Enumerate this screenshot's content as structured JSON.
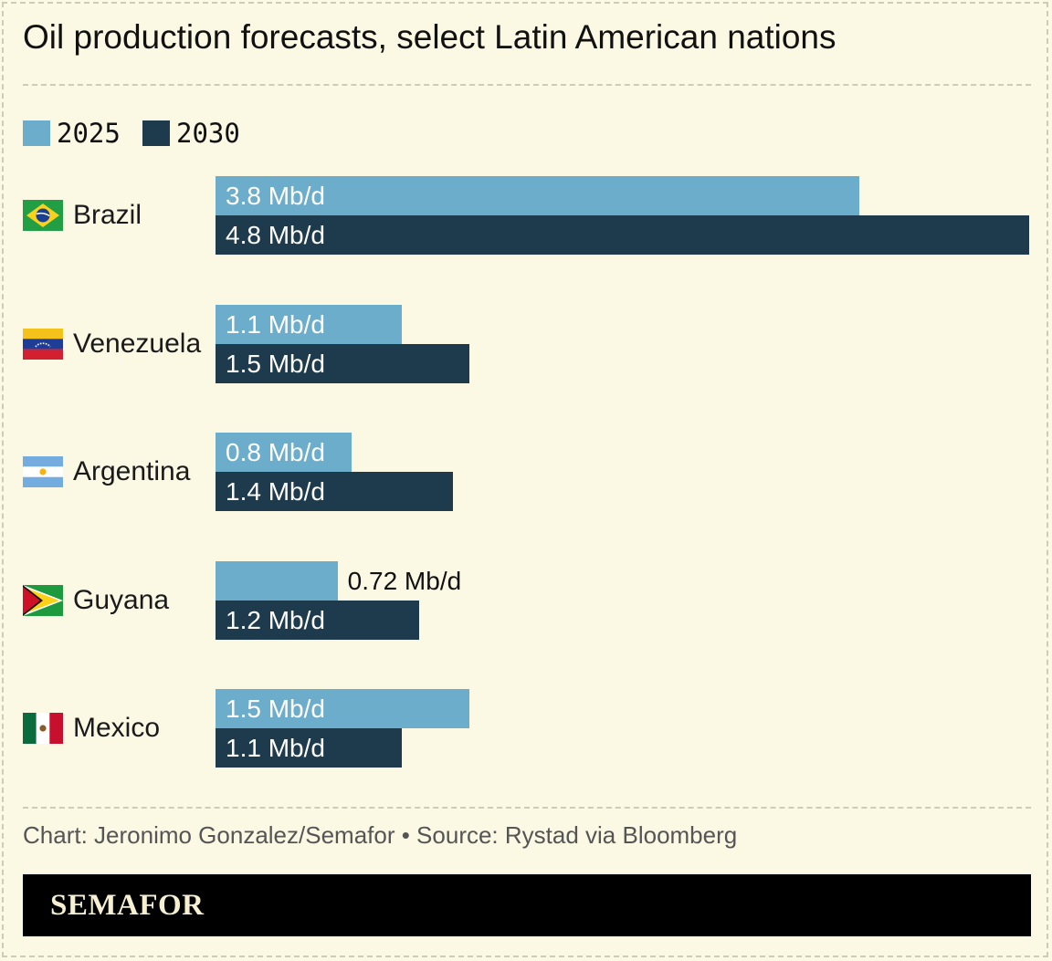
{
  "title": "Oil production forecasts, select Latin American nations",
  "legend": [
    {
      "label": "2025",
      "color": "#6badcb"
    },
    {
      "label": "2030",
      "color": "#1e3b4d"
    }
  ],
  "chart_data": {
    "type": "bar",
    "orientation": "horizontal",
    "title": "Oil production forecasts, select Latin American nations",
    "categories": [
      "Brazil",
      "Venezuela",
      "Argentina",
      "Guyana",
      "Mexico"
    ],
    "series": [
      {
        "name": "2025",
        "color": "#6badcb",
        "values": [
          3.8,
          1.1,
          0.8,
          0.72,
          1.5
        ],
        "labels": [
          "3.8 Mb/d",
          "1.1 Mb/d",
          "0.8 Mb/d",
          "0.72 Mb/d",
          "1.5 Mb/d"
        ]
      },
      {
        "name": "2030",
        "color": "#1e3b4d",
        "values": [
          4.8,
          1.5,
          1.4,
          1.2,
          1.1
        ],
        "labels": [
          "4.8 Mb/d",
          "1.5 Mb/d",
          "1.4 Mb/d",
          "1.2 Mb/d",
          "1.1 Mb/d"
        ]
      }
    ],
    "xlim": [
      0,
      4.8
    ],
    "grid": false,
    "legend_position": "top-left"
  },
  "flags": [
    "brazil-flag-icon",
    "venezuela-flag-icon",
    "argentina-flag-icon",
    "guyana-flag-icon",
    "mexico-flag-icon"
  ],
  "footer": {
    "source": "Chart: Jeronimo Gonzalez/Semafor • Source: Rystad via Bloomberg",
    "brand": "SEMAFOR"
  }
}
